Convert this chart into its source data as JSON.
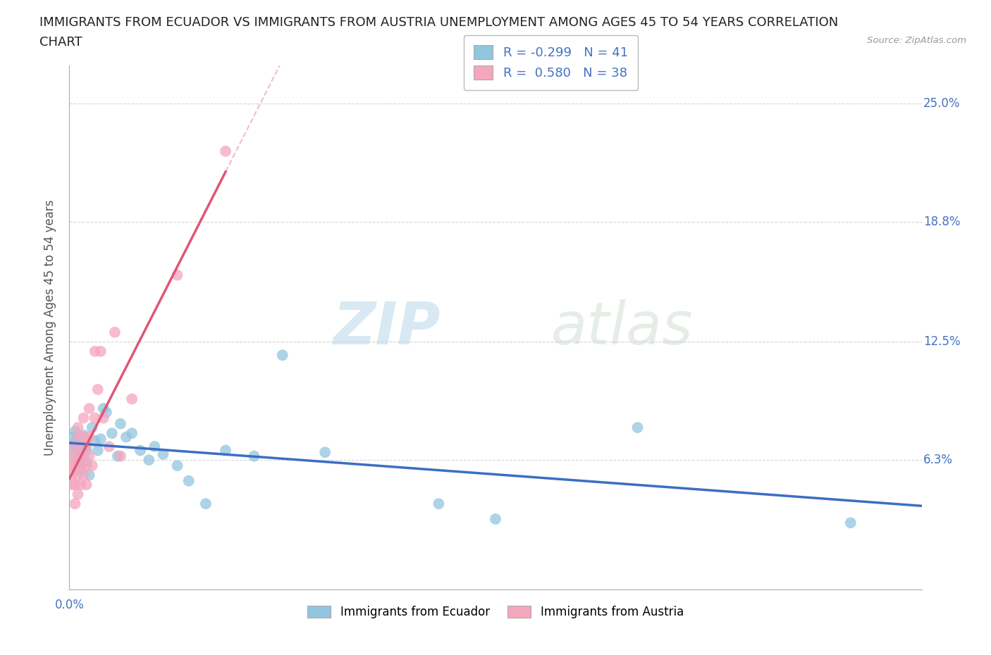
{
  "title_line1": "IMMIGRANTS FROM ECUADOR VS IMMIGRANTS FROM AUSTRIA UNEMPLOYMENT AMONG AGES 45 TO 54 YEARS CORRELATION",
  "title_line2": "CHART",
  "source": "Source: ZipAtlas.com",
  "ylabel": "Unemployment Among Ages 45 to 54 years",
  "xlim": [
    0.0,
    0.3
  ],
  "ylim": [
    -0.005,
    0.27
  ],
  "xticks": [
    0.0,
    0.05,
    0.1,
    0.15,
    0.2,
    0.25,
    0.3
  ],
  "ytick_positions": [
    0.0,
    0.063,
    0.125,
    0.188,
    0.25
  ],
  "ytick_labels": [
    "",
    "6.3%",
    "12.5%",
    "18.8%",
    "25.0%"
  ],
  "ecuador_color": "#92c5de",
  "austria_color": "#f4a6bd",
  "ecuador_R": -0.299,
  "ecuador_N": 41,
  "austria_R": 0.58,
  "austria_N": 38,
  "ecuador_line_color": "#3a6fc4",
  "austria_line_color": "#e05578",
  "austria_dash_color": "#e8a0b8",
  "watermark_zip": "ZIP",
  "watermark_atlas": "atlas",
  "background_color": "#ffffff",
  "grid_color": "#cccccc",
  "label_color": "#4472c4",
  "ecuador_x": [
    0.001,
    0.001,
    0.002,
    0.002,
    0.002,
    0.003,
    0.003,
    0.003,
    0.004,
    0.004,
    0.005,
    0.005,
    0.006,
    0.006,
    0.007,
    0.008,
    0.009,
    0.01,
    0.011,
    0.012,
    0.013,
    0.015,
    0.017,
    0.018,
    0.02,
    0.022,
    0.025,
    0.028,
    0.03,
    0.033,
    0.038,
    0.042,
    0.048,
    0.055,
    0.065,
    0.075,
    0.09,
    0.13,
    0.15,
    0.2,
    0.275
  ],
  "ecuador_y": [
    0.07,
    0.075,
    0.065,
    0.072,
    0.078,
    0.062,
    0.068,
    0.073,
    0.058,
    0.065,
    0.07,
    0.076,
    0.062,
    0.068,
    0.055,
    0.08,
    0.073,
    0.068,
    0.074,
    0.09,
    0.088,
    0.077,
    0.065,
    0.082,
    0.075,
    0.077,
    0.068,
    0.063,
    0.07,
    0.066,
    0.06,
    0.052,
    0.04,
    0.068,
    0.065,
    0.118,
    0.067,
    0.04,
    0.032,
    0.08,
    0.03
  ],
  "austria_x": [
    0.001,
    0.001,
    0.001,
    0.001,
    0.002,
    0.002,
    0.002,
    0.002,
    0.003,
    0.003,
    0.003,
    0.003,
    0.003,
    0.004,
    0.004,
    0.004,
    0.005,
    0.005,
    0.005,
    0.005,
    0.006,
    0.006,
    0.006,
    0.007,
    0.007,
    0.007,
    0.008,
    0.009,
    0.009,
    0.01,
    0.011,
    0.012,
    0.014,
    0.016,
    0.018,
    0.022,
    0.038,
    0.055
  ],
  "austria_y": [
    0.05,
    0.055,
    0.06,
    0.065,
    0.04,
    0.05,
    0.06,
    0.07,
    0.045,
    0.055,
    0.065,
    0.075,
    0.08,
    0.05,
    0.06,
    0.07,
    0.055,
    0.065,
    0.075,
    0.085,
    0.05,
    0.06,
    0.07,
    0.065,
    0.075,
    0.09,
    0.06,
    0.085,
    0.12,
    0.1,
    0.12,
    0.085,
    0.07,
    0.13,
    0.065,
    0.095,
    0.16,
    0.225
  ]
}
